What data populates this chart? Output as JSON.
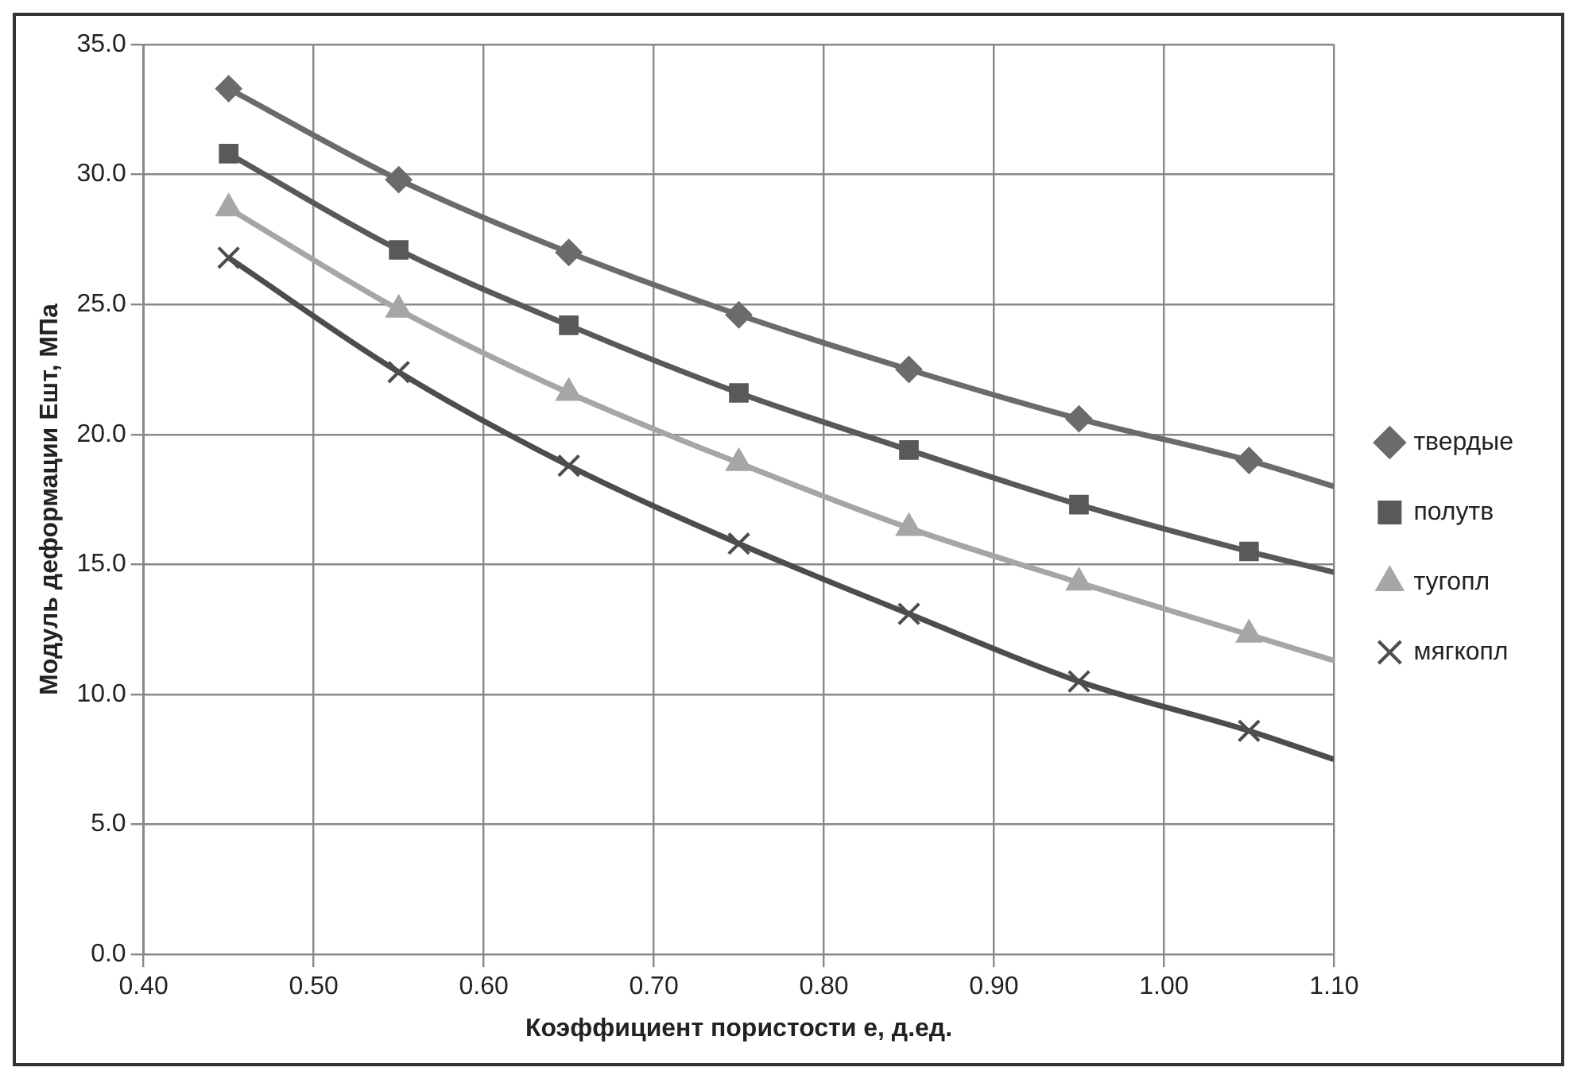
{
  "chart_data": {
    "type": "line",
    "xlabel": "Коэффициент пористости e, д.ед.",
    "ylabel": "Модуль деформации Eшт, МПа",
    "x": [
      0.45,
      0.55,
      0.65,
      0.75,
      0.85,
      0.95,
      1.05,
      1.1
    ],
    "series": [
      {
        "name": "твердые",
        "color": "#6b6b6b",
        "marker": "diamond",
        "values": [
          33.3,
          29.8,
          27.0,
          24.6,
          22.5,
          20.6,
          19.0,
          18.0
        ]
      },
      {
        "name": "полутв",
        "color": "#595959",
        "marker": "square",
        "values": [
          30.8,
          27.1,
          24.2,
          21.6,
          19.4,
          17.3,
          15.5,
          14.7
        ]
      },
      {
        "name": "тугопл",
        "color": "#a6a6a6",
        "marker": "triangle",
        "values": [
          28.7,
          24.8,
          21.6,
          18.9,
          16.4,
          14.3,
          12.3,
          11.3
        ]
      },
      {
        "name": "мягкопл",
        "color": "#4d4d4d",
        "marker": "cross",
        "values": [
          26.8,
          22.4,
          18.8,
          15.8,
          13.1,
          10.5,
          8.6,
          7.5
        ]
      }
    ],
    "xlim": [
      0.4,
      1.1
    ],
    "xticks": [
      {
        "value": 0.4,
        "label": "0.40"
      },
      {
        "value": 0.5,
        "label": "0.50"
      },
      {
        "value": 0.6,
        "label": "0.60"
      },
      {
        "value": 0.7,
        "label": "0.70"
      },
      {
        "value": 0.8,
        "label": "0.80"
      },
      {
        "value": 0.9,
        "label": "0.90"
      },
      {
        "value": 1.0,
        "label": "1.00"
      },
      {
        "value": 1.1,
        "label": "1.10"
      }
    ],
    "ylim": [
      0,
      35
    ],
    "yticks": [
      {
        "value": 0,
        "label": "0.0"
      },
      {
        "value": 5,
        "label": "5.0"
      },
      {
        "value": 10,
        "label": "10.0"
      },
      {
        "value": 15,
        "label": "15.0"
      },
      {
        "value": 20,
        "label": "20.0"
      },
      {
        "value": 25,
        "label": "25.0"
      },
      {
        "value": 30,
        "label": "30.0"
      },
      {
        "value": 35,
        "label": "35.0"
      }
    ],
    "grid": true,
    "legend": "right",
    "line_style": "solid"
  }
}
